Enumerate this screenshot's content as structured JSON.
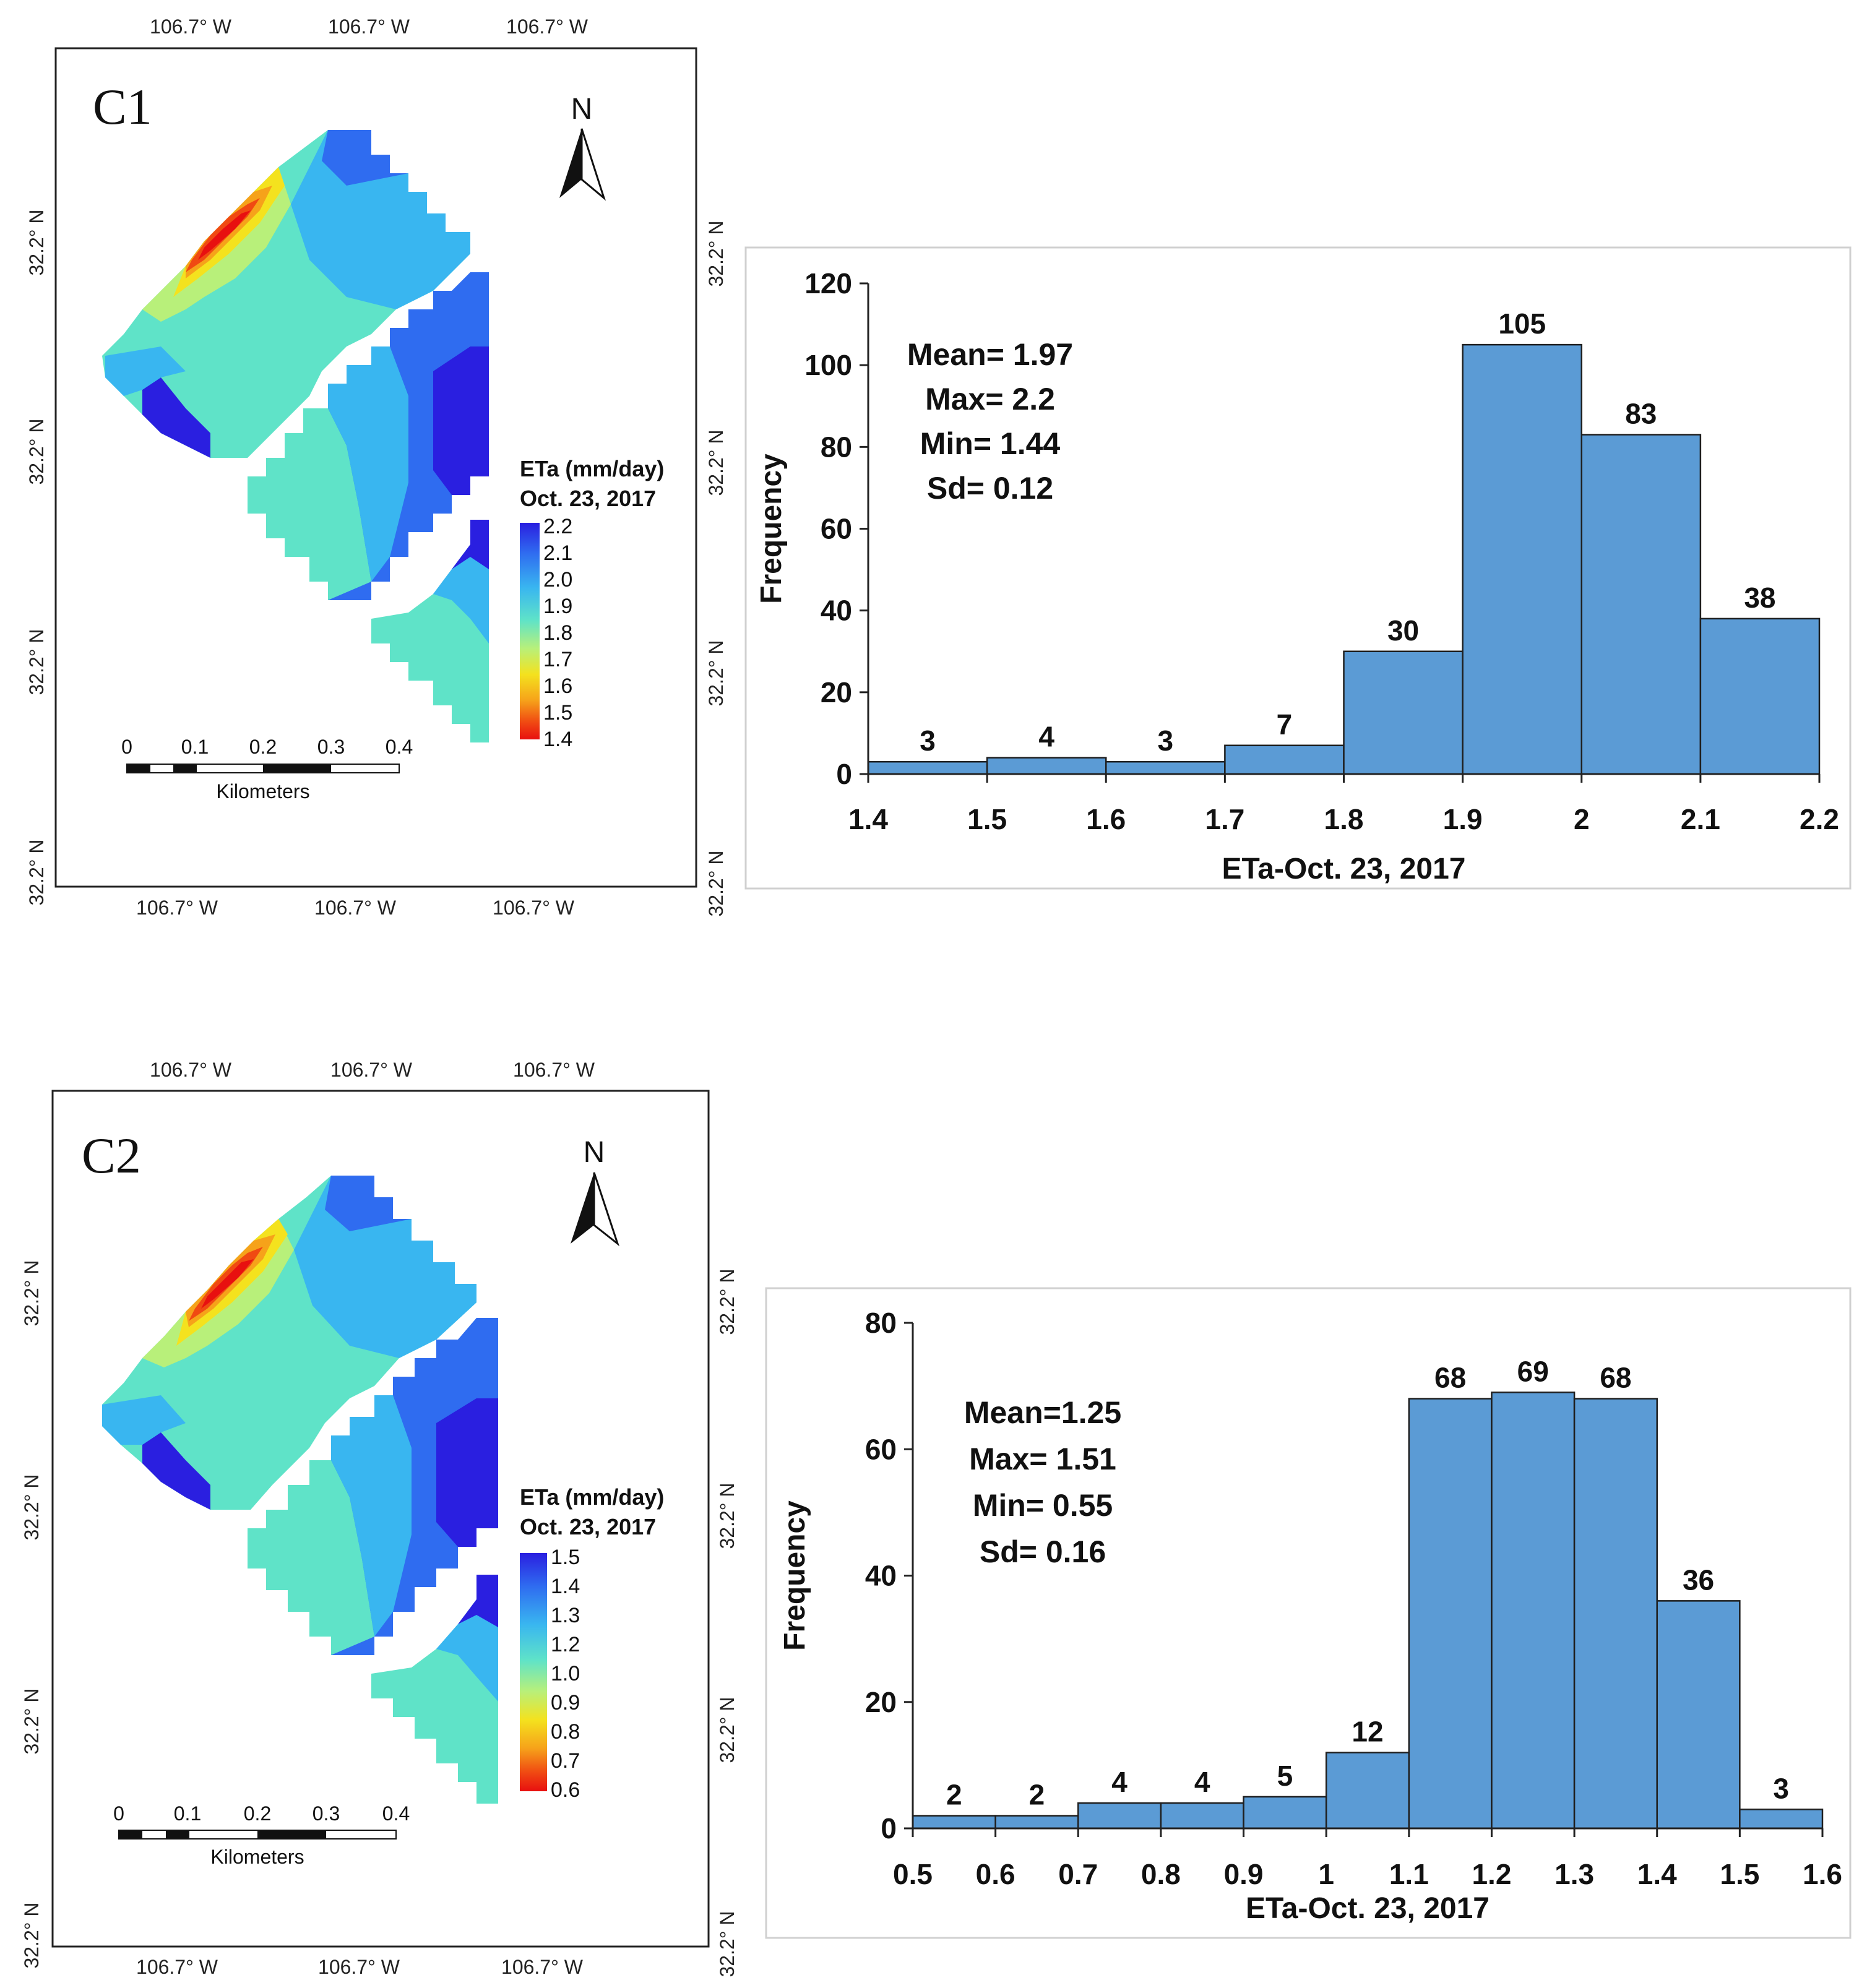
{
  "maps": [
    {
      "label": "C1",
      "north": "N",
      "top_lon": [
        "106.7° W",
        "106.7° W",
        "106.7° W"
      ],
      "bottom_lon": [
        "106.7° W",
        "106.7° W",
        "106.7° W"
      ],
      "left_lat": [
        "32.2° N",
        "32.2° N",
        "32.2° N",
        "32.2° N"
      ],
      "right_lat": [
        "32.2° N",
        "32.2° N",
        "32.2° N",
        "32.2° N"
      ],
      "legend_title": "ETa (mm/day)",
      "legend_date": "Oct. 23, 2017",
      "legend_values": [
        "2.2",
        "2.1",
        "2.0",
        "1.9",
        "1.8",
        "1.7",
        "1.6",
        "1.5",
        "1.4"
      ],
      "scale_values": [
        "0",
        "0.1",
        "0.2",
        "0.3",
        "0.4"
      ],
      "scale_unit": "Kilometers"
    },
    {
      "label": "C2",
      "north": "N",
      "top_lon": [
        "106.7° W",
        "106.7° W",
        "106.7° W"
      ],
      "bottom_lon": [
        "106.7° W",
        "106.7° W",
        "106.7° W"
      ],
      "left_lat": [
        "32.2° N",
        "32.2° N",
        "32.2° N",
        "32.2° N"
      ],
      "right_lat": [
        "32.2° N",
        "32.2° N",
        "32.2° N",
        "32.2° N"
      ],
      "legend_title": "ETa (mm/day)",
      "legend_date": "Oct. 23, 2017",
      "legend_values": [
        "1.5",
        "1.4",
        "1.3",
        "1.2",
        "1.0",
        "0.9",
        "0.8",
        "0.7",
        "0.6"
      ],
      "scale_values": [
        "0",
        "0.1",
        "0.2",
        "0.3",
        "0.4"
      ],
      "scale_unit": "Kilometers"
    }
  ],
  "colors": {
    "bar_fill": "#5b9bd5",
    "bar_stroke": "#1f1f1f",
    "ramp": [
      "#2a1fe0",
      "#2f6cf0",
      "#39b6f0",
      "#5fe3c8",
      "#b8f07a",
      "#f4e21e",
      "#f6a21a",
      "#f04a12",
      "#e81010"
    ]
  },
  "chart_data": [
    {
      "type": "bar",
      "title": "",
      "xlabel": "ETa-Oct. 23, 2017",
      "ylabel": "Frequency",
      "bin_edges": [
        1.4,
        1.5,
        1.6,
        1.7,
        1.8,
        1.9,
        2.0,
        2.1,
        2.2
      ],
      "x_tick_labels": [
        "1.4",
        "1.5",
        "1.6",
        "1.7",
        "1.8",
        "1.9",
        "2",
        "2.1",
        "2.2"
      ],
      "values": [
        3,
        4,
        3,
        7,
        30,
        105,
        83,
        38
      ],
      "value_labels": [
        "3",
        "4",
        "3",
        "7",
        "30",
        "105",
        "83",
        "38"
      ],
      "ylim": [
        0,
        120
      ],
      "y_ticks": [
        0,
        20,
        40,
        60,
        80,
        100,
        120
      ],
      "y_tick_labels": [
        "0",
        "20",
        "40",
        "60",
        "80",
        "100",
        "120"
      ],
      "stats": [
        "Mean= 1.97",
        "Max= 2.2",
        "Min= 1.44",
        "Sd= 0.12"
      ]
    },
    {
      "type": "bar",
      "title": "",
      "xlabel": "ETa-Oct. 23, 2017",
      "ylabel": "Frequency",
      "bin_edges": [
        0.5,
        0.6,
        0.7,
        0.8,
        0.9,
        1.0,
        1.1,
        1.2,
        1.3,
        1.4,
        1.5,
        1.6
      ],
      "x_tick_labels": [
        "0.5",
        "0.6",
        "0.7",
        "0.8",
        "0.9",
        "1",
        "1.1",
        "1.2",
        "1.3",
        "1.4",
        "1.5",
        "1.6"
      ],
      "values": [
        2,
        2,
        4,
        4,
        5,
        12,
        68,
        69,
        68,
        36,
        3
      ],
      "value_labels": [
        "2",
        "2",
        "4",
        "4",
        "5",
        "12",
        "68",
        "69",
        "68",
        "36",
        "3"
      ],
      "ylim": [
        0,
        80
      ],
      "y_ticks": [
        0,
        20,
        40,
        60,
        80
      ],
      "y_tick_labels": [
        "0",
        "20",
        "40",
        "60",
        "80"
      ],
      "stats": [
        "Mean=1.25",
        "Max= 1.51",
        "Min= 0.55",
        "Sd= 0.16"
      ]
    }
  ]
}
